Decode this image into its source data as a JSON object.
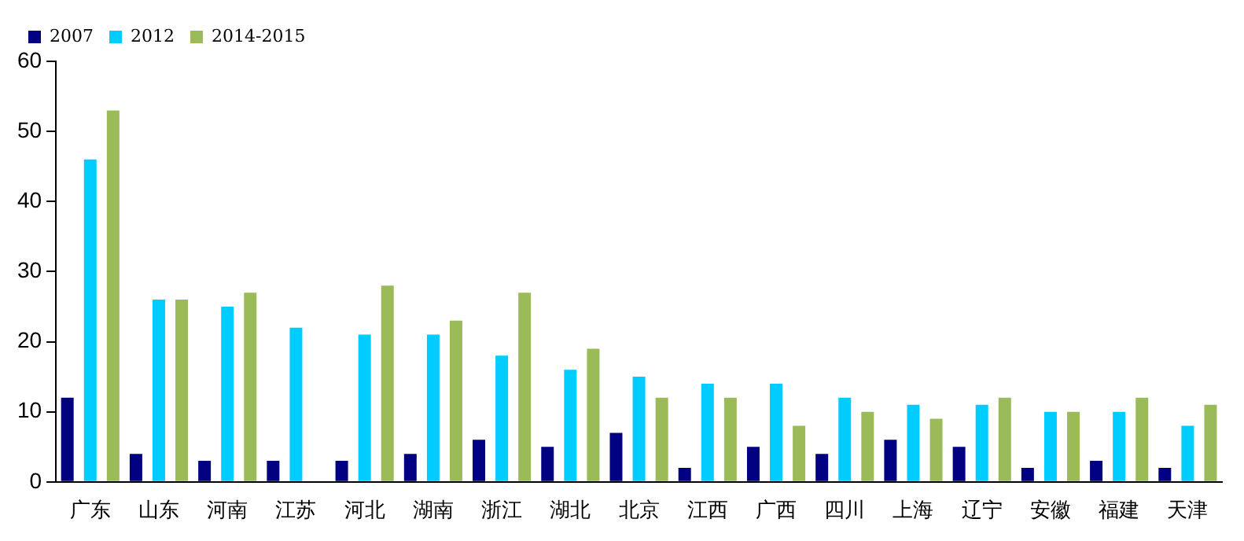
{
  "chart_data": {
    "type": "bar",
    "categories": [
      "广东",
      "山东",
      "河南",
      "江苏",
      "河北",
      "湖南",
      "浙江",
      "湖北",
      "北京",
      "江西",
      "广西",
      "四川",
      "上海",
      "辽宁",
      "安徽",
      "福建",
      "天津"
    ],
    "series": [
      {
        "name": "2007",
        "color": "#000080",
        "values": [
          12,
          4,
          3,
          3,
          3,
          4,
          6,
          5,
          7,
          2,
          5,
          4,
          6,
          5,
          2,
          3,
          2
        ]
      },
      {
        "name": "2012",
        "color": "#00ccff",
        "values": [
          46,
          26,
          25,
          22,
          21,
          21,
          18,
          16,
          15,
          14,
          14,
          12,
          11,
          11,
          10,
          10,
          8
        ]
      },
      {
        "name": "2014-2015",
        "color": "#9bbb59",
        "values": [
          53,
          26,
          27,
          null,
          28,
          23,
          27,
          19,
          12,
          12,
          8,
          10,
          9,
          12,
          10,
          12,
          11
        ]
      }
    ],
    "ylim": [
      0,
      60
    ],
    "yticks": [
      0,
      10,
      20,
      30,
      40,
      50,
      60
    ],
    "grid": false,
    "legend": "top left"
  }
}
